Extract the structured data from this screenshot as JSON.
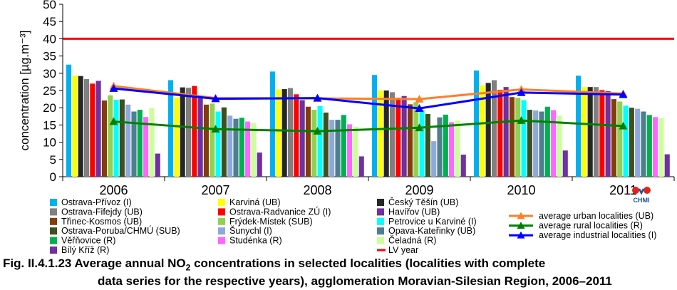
{
  "chart_data": {
    "type": "bar",
    "ylabel": "concentration [µg.m⁻³]",
    "ylim": [
      0,
      50
    ],
    "yticks": [
      0,
      5,
      10,
      15,
      20,
      25,
      30,
      35,
      40,
      45,
      50
    ],
    "categories": [
      "2006",
      "2007",
      "2008",
      "2009",
      "2010",
      "2011"
    ],
    "grid": false,
    "legend_position": "bottom",
    "series": [
      {
        "name": "Ostrava-Přívoz (I)",
        "color": "#00b0f0",
        "values": [
          32.5,
          28,
          30.5,
          29.5,
          30.8,
          29.3
        ]
      },
      {
        "name": "Karviná (UB)",
        "color": "#ffff00",
        "values": [
          29.3,
          23,
          25.3,
          25,
          26.5,
          26
        ]
      },
      {
        "name": "Český Těšín (UB)",
        "color": "#262626",
        "values": [
          29.2,
          25.9,
          25.4,
          25,
          27.2,
          26
        ]
      },
      {
        "name": "Ostrava-Fifejdy (UB)",
        "color": "#808080",
        "values": [
          28.3,
          25.8,
          25.7,
          24.5,
          28,
          26
        ]
      },
      {
        "name": "Ostrava-Radvanice ZÚ (I)",
        "color": "#ff0000",
        "values": [
          27,
          26.3,
          23.9,
          22.9,
          25.2,
          25.1
        ]
      },
      {
        "name": "Havířov (UB)",
        "color": "#7030a0",
        "values": [
          27.8,
          23,
          22.2,
          23.4,
          26,
          24.8
        ]
      },
      {
        "name": "Třinec-Kosmos (UB)",
        "color": "#843c0c",
        "values": [
          22.1,
          20.9,
          20.3,
          21,
          23.1,
          22.5
        ]
      },
      {
        "name": "Frýdek-Místek (SUB)",
        "color": "#92d050",
        "values": [
          23.6,
          21.2,
          19.4,
          21.6,
          22.9,
          21.8
        ]
      },
      {
        "name": "Petrovice u Karviné (I)",
        "color": "#00ffff",
        "values": [
          22.3,
          18.9,
          20.5,
          19.3,
          22.2,
          20.6
        ]
      },
      {
        "name": "Ostrava-Poruba/CHMÚ (SUB)",
        "color": "#3f4f1f",
        "values": [
          22.4,
          20.1,
          18.6,
          18.2,
          19.4,
          20
        ]
      },
      {
        "name": "Šunychl (I)",
        "color": "#8ea9db",
        "values": [
          20.9,
          17.7,
          16.5,
          10.3,
          19.2,
          19.7
        ]
      },
      {
        "name": "Opava-Kateřinky (UB)",
        "color": "#4f7f8f",
        "values": [
          18.9,
          16.8,
          16.5,
          17.2,
          18.9,
          18.9
        ]
      },
      {
        "name": "Věřňovice (R)",
        "color": "#00b050",
        "values": [
          19.4,
          17.1,
          17.9,
          18,
          20.3,
          17.9
        ]
      },
      {
        "name": "Studénka (R)",
        "color": "#ff66ff",
        "values": [
          17.3,
          16,
          15.2,
          15.8,
          19.3,
          17.3
        ]
      },
      {
        "name": "Čeladná (R)",
        "color": "#ccff99",
        "values": [
          19.9,
          15.6,
          14.5,
          16.3,
          17.7,
          17
        ]
      },
      {
        "name": "Bílý Kříž (R)",
        "color": "#7030a0",
        "values": [
          6.7,
          7,
          5.9,
          6.4,
          7.6,
          6.5
        ]
      }
    ],
    "line_series": [
      {
        "name": "average urban localities (UB)",
        "color": "#ff7f27",
        "marker": "triangle",
        "values": [
          26.3,
          22.8,
          22.7,
          22.5,
          25.3,
          24.1
        ]
      },
      {
        "name": "average rural localities (R)",
        "color": "#008000",
        "marker": "triangle",
        "values": [
          16,
          13.8,
          13.2,
          14.2,
          16.3,
          14.7
        ]
      },
      {
        "name": "average industrial localities (I)",
        "color": "#0000ff",
        "marker": "triangle",
        "values": [
          25.6,
          22.6,
          22.8,
          19.8,
          24.4,
          23.8
        ]
      }
    ],
    "reference_line": {
      "name": "LV year",
      "value": 40,
      "color": "#ff0000"
    }
  },
  "logo": {
    "text": "CHMI"
  },
  "caption": {
    "line1_pre": "Fig. II.4.1.23  Average annual NO",
    "line1_sub": "2",
    "line1_post": " concentrations in selected localities (localities with complete",
    "line2": "data series for the respective years), agglomeration Moravian-Silesian Region, 2006–2011"
  }
}
